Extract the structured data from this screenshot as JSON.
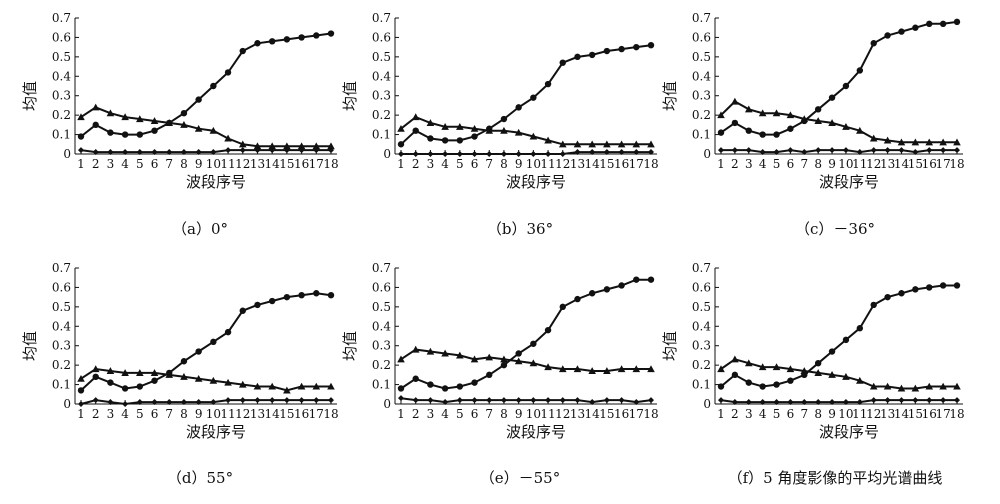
{
  "chart_data": [
    {
      "type": "line",
      "caption": "（a）0°",
      "xlabel": "波段序号",
      "ylabel": "均值",
      "x": [
        1,
        2,
        3,
        4,
        5,
        6,
        7,
        8,
        9,
        10,
        11,
        12,
        13,
        14,
        15,
        16,
        17,
        18
      ],
      "ylim": [
        0,
        0.7
      ],
      "yticks": [
        0,
        0.1,
        0.2,
        0.3,
        0.4,
        0.5,
        0.6,
        0.7
      ],
      "series": [
        {
          "marker": "circle",
          "values": [
            0.09,
            0.15,
            0.11,
            0.1,
            0.1,
            0.12,
            0.16,
            0.21,
            0.28,
            0.35,
            0.42,
            0.53,
            0.57,
            0.58,
            0.59,
            0.6,
            0.61,
            0.62
          ]
        },
        {
          "marker": "triangle",
          "values": [
            0.19,
            0.24,
            0.21,
            0.19,
            0.18,
            0.17,
            0.16,
            0.15,
            0.13,
            0.12,
            0.08,
            0.05,
            0.04,
            0.04,
            0.04,
            0.04,
            0.04,
            0.04
          ]
        },
        {
          "marker": "diamond",
          "values": [
            0.02,
            0.01,
            0.01,
            0.01,
            0.01,
            0.01,
            0.01,
            0.01,
            0.01,
            0.01,
            0.02,
            0.02,
            0.02,
            0.02,
            0.02,
            0.02,
            0.02,
            0.02
          ]
        }
      ]
    },
    {
      "type": "line",
      "caption": "（b）36°",
      "xlabel": "波段序号",
      "ylabel": "均值",
      "x": [
        1,
        2,
        3,
        4,
        5,
        6,
        7,
        8,
        9,
        10,
        11,
        12,
        13,
        14,
        15,
        16,
        17,
        18
      ],
      "ylim": [
        0,
        0.7
      ],
      "yticks": [
        0,
        0.1,
        0.2,
        0.3,
        0.4,
        0.5,
        0.6,
        0.7
      ],
      "series": [
        {
          "marker": "circle",
          "values": [
            0.05,
            0.12,
            0.08,
            0.07,
            0.07,
            0.09,
            0.13,
            0.18,
            0.24,
            0.29,
            0.36,
            0.47,
            0.5,
            0.51,
            0.53,
            0.54,
            0.55,
            0.56
          ]
        },
        {
          "marker": "triangle",
          "values": [
            0.13,
            0.19,
            0.16,
            0.14,
            0.14,
            0.13,
            0.12,
            0.12,
            0.11,
            0.09,
            0.07,
            0.05,
            0.05,
            0.05,
            0.05,
            0.05,
            0.05,
            0.05
          ]
        },
        {
          "marker": "diamond",
          "values": [
            0.0,
            0.0,
            0.0,
            0.0,
            0.0,
            0.0,
            0.0,
            0.0,
            0.0,
            0.0,
            0.0,
            0.0,
            0.01,
            0.01,
            0.01,
            0.01,
            0.01,
            0.01
          ]
        }
      ]
    },
    {
      "type": "line",
      "caption": "（c）－36°",
      "xlabel": "波段序号",
      "ylabel": "均值",
      "x": [
        1,
        2,
        3,
        4,
        5,
        6,
        7,
        8,
        9,
        10,
        11,
        12,
        13,
        14,
        15,
        16,
        17,
        18
      ],
      "ylim": [
        0,
        0.7
      ],
      "yticks": [
        0,
        0.1,
        0.2,
        0.3,
        0.4,
        0.5,
        0.6,
        0.7
      ],
      "series": [
        {
          "marker": "circle",
          "values": [
            0.11,
            0.16,
            0.12,
            0.1,
            0.1,
            0.13,
            0.17,
            0.23,
            0.29,
            0.35,
            0.43,
            0.57,
            0.61,
            0.63,
            0.65,
            0.67,
            0.67,
            0.68
          ]
        },
        {
          "marker": "triangle",
          "values": [
            0.2,
            0.27,
            0.23,
            0.21,
            0.21,
            0.2,
            0.18,
            0.17,
            0.16,
            0.14,
            0.12,
            0.08,
            0.07,
            0.06,
            0.06,
            0.06,
            0.06,
            0.06
          ]
        },
        {
          "marker": "diamond",
          "values": [
            0.02,
            0.02,
            0.02,
            0.01,
            0.01,
            0.02,
            0.01,
            0.02,
            0.02,
            0.02,
            0.01,
            0.02,
            0.02,
            0.02,
            0.01,
            0.02,
            0.02,
            0.02
          ]
        }
      ]
    },
    {
      "type": "line",
      "caption": "（d）55°",
      "xlabel": "波段序号",
      "ylabel": "均值",
      "x": [
        1,
        2,
        3,
        4,
        5,
        6,
        7,
        8,
        9,
        10,
        11,
        12,
        13,
        14,
        15,
        16,
        17,
        18
      ],
      "ylim": [
        0,
        0.7
      ],
      "yticks": [
        0,
        0.1,
        0.2,
        0.3,
        0.4,
        0.5,
        0.6,
        0.7
      ],
      "series": [
        {
          "marker": "circle",
          "values": [
            0.07,
            0.14,
            0.11,
            0.08,
            0.09,
            0.12,
            0.16,
            0.22,
            0.27,
            0.32,
            0.37,
            0.48,
            0.51,
            0.53,
            0.55,
            0.56,
            0.57,
            0.56
          ]
        },
        {
          "marker": "triangle",
          "values": [
            0.13,
            0.18,
            0.17,
            0.16,
            0.16,
            0.16,
            0.15,
            0.14,
            0.13,
            0.12,
            0.11,
            0.1,
            0.09,
            0.09,
            0.07,
            0.09,
            0.09,
            0.09
          ]
        },
        {
          "marker": "diamond",
          "values": [
            0.0,
            0.02,
            0.01,
            0.0,
            0.01,
            0.01,
            0.01,
            0.01,
            0.01,
            0.01,
            0.02,
            0.02,
            0.02,
            0.02,
            0.02,
            0.02,
            0.02,
            0.02
          ]
        }
      ]
    },
    {
      "type": "line",
      "caption": "（e）－55°",
      "xlabel": "波段序号",
      "ylabel": "均值",
      "x": [
        1,
        2,
        3,
        4,
        5,
        6,
        7,
        8,
        9,
        10,
        11,
        12,
        13,
        14,
        15,
        16,
        17,
        18
      ],
      "ylim": [
        0,
        0.7
      ],
      "yticks": [
        0,
        0.1,
        0.2,
        0.3,
        0.4,
        0.5,
        0.6,
        0.7
      ],
      "series": [
        {
          "marker": "circle",
          "values": [
            0.08,
            0.13,
            0.1,
            0.08,
            0.09,
            0.11,
            0.15,
            0.2,
            0.26,
            0.31,
            0.38,
            0.5,
            0.54,
            0.57,
            0.59,
            0.61,
            0.64,
            0.64
          ]
        },
        {
          "marker": "triangle",
          "values": [
            0.23,
            0.28,
            0.27,
            0.26,
            0.25,
            0.23,
            0.24,
            0.23,
            0.22,
            0.21,
            0.19,
            0.18,
            0.18,
            0.17,
            0.17,
            0.18,
            0.18,
            0.18
          ]
        },
        {
          "marker": "diamond",
          "values": [
            0.03,
            0.02,
            0.02,
            0.01,
            0.02,
            0.02,
            0.02,
            0.02,
            0.02,
            0.02,
            0.02,
            0.02,
            0.02,
            0.01,
            0.02,
            0.02,
            0.01,
            0.02
          ]
        }
      ]
    },
    {
      "type": "line",
      "caption": "（f）5 角度影像的平均光谱曲线",
      "xlabel": "波段序号",
      "ylabel": "均值",
      "x": [
        1,
        2,
        3,
        4,
        5,
        6,
        7,
        8,
        9,
        10,
        11,
        12,
        13,
        14,
        15,
        16,
        17,
        18
      ],
      "ylim": [
        0,
        0.7
      ],
      "yticks": [
        0,
        0.1,
        0.2,
        0.3,
        0.4,
        0.5,
        0.6,
        0.7
      ],
      "series": [
        {
          "marker": "circle",
          "values": [
            0.09,
            0.15,
            0.11,
            0.09,
            0.1,
            0.12,
            0.15,
            0.21,
            0.27,
            0.33,
            0.39,
            0.51,
            0.55,
            0.57,
            0.59,
            0.6,
            0.61,
            0.61
          ]
        },
        {
          "marker": "triangle",
          "values": [
            0.18,
            0.23,
            0.21,
            0.19,
            0.19,
            0.18,
            0.17,
            0.16,
            0.15,
            0.14,
            0.12,
            0.09,
            0.09,
            0.08,
            0.08,
            0.09,
            0.09,
            0.09
          ]
        },
        {
          "marker": "diamond",
          "values": [
            0.02,
            0.01,
            0.01,
            0.01,
            0.01,
            0.01,
            0.01,
            0.01,
            0.01,
            0.01,
            0.01,
            0.02,
            0.02,
            0.02,
            0.02,
            0.02,
            0.02,
            0.02
          ]
        }
      ]
    }
  ]
}
